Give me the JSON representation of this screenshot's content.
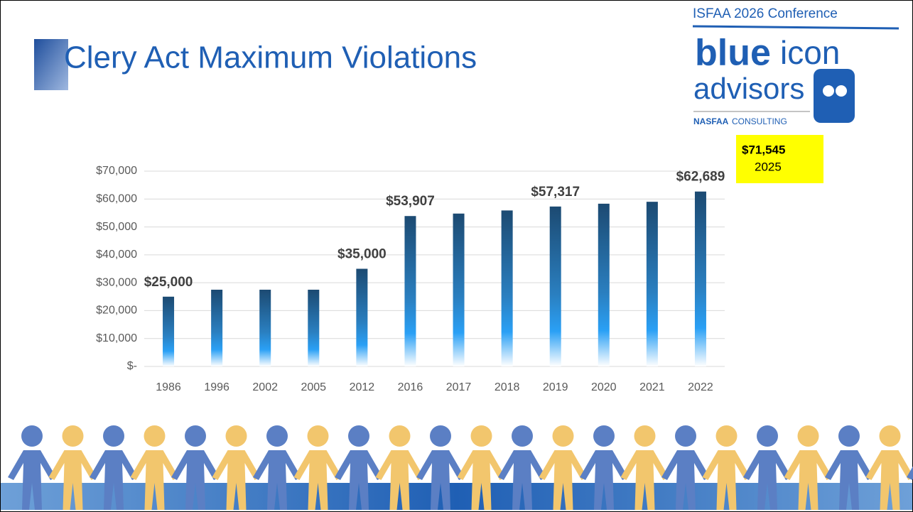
{
  "header": {
    "conference": "ISFAA 2026 Conference",
    "title": "Clery Act Maximum Violations"
  },
  "logo": {
    "word1": "blue",
    "word2": "icon",
    "word3": "advisors",
    "org": "NASFAA",
    "tagline": "CONSULTING"
  },
  "chart_data": {
    "type": "bar",
    "categories": [
      "1986",
      "1996",
      "2002",
      "2005",
      "2012",
      "2016",
      "2017",
      "2018",
      "2019",
      "2020",
      "2021",
      "2022"
    ],
    "values": [
      25000,
      27500,
      27500,
      27500,
      35000,
      53907,
      54789,
      55907,
      57317,
      58328,
      59017,
      62689
    ],
    "value_labels": [
      "$25,000",
      null,
      null,
      null,
      "$35,000",
      "$53,907",
      null,
      null,
      "$57,317",
      null,
      null,
      "$62,689"
    ],
    "ylim": [
      0,
      70000
    ],
    "yticks": [
      {
        "value": 0,
        "label": "$-"
      },
      {
        "value": 10000,
        "label": "$10,000"
      },
      {
        "value": 20000,
        "label": "$20,000"
      },
      {
        "value": 30000,
        "label": "$30,000"
      },
      {
        "value": 40000,
        "label": "$40,000"
      },
      {
        "value": 50000,
        "label": "$50,000"
      },
      {
        "value": 60000,
        "label": "$60,000"
      },
      {
        "value": 70000,
        "label": "$70,000"
      }
    ],
    "grid": true,
    "callout": {
      "value_label": "$71,545",
      "year": "2025"
    }
  }
}
